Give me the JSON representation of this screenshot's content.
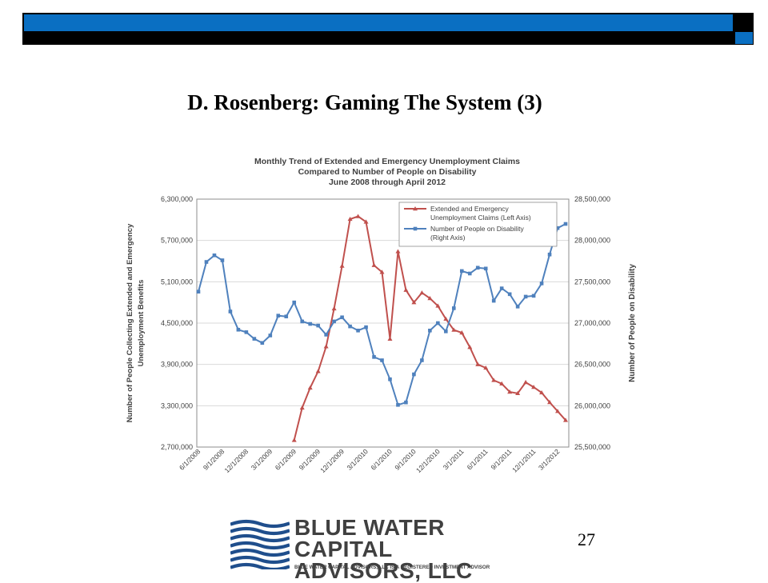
{
  "slide": {
    "title": "D. Rosenberg: Gaming The System (3)",
    "page_number": "27",
    "accent_color": "#0a6fc2",
    "bar_color": "#000000"
  },
  "logo": {
    "name_line1": "BLUE WATER CAPITAL",
    "name_line2": "ADVISORS, LLC",
    "tagline": "BLUE WATER CAPITAL ADVISORS, LLC IS A REGISTERED INVESTMENT ADVISOR",
    "icon": "blue-water-waves-logo",
    "color": "#1f4e8c"
  },
  "chart_data": {
    "type": "line",
    "title": [
      "Monthly Trend of Extended and Emergency Unemployment Claims",
      "Compared to  Number of People on Disability",
      "June 2008 through April 2012"
    ],
    "ylabel_left": [
      "Number of People Collecting Extended and Emergency",
      "Unemployment Benefits"
    ],
    "ylabel_right": "Number of People on Disability",
    "xlabel": "",
    "x": [
      "6/1/2008",
      "7/1/2008",
      "8/1/2008",
      "9/1/2008",
      "10/1/2008",
      "11/1/2008",
      "12/1/2008",
      "1/1/2009",
      "2/1/2009",
      "3/1/2009",
      "4/1/2009",
      "5/1/2009",
      "6/1/2009",
      "7/1/2009",
      "8/1/2009",
      "9/1/2009",
      "10/1/2009",
      "11/1/2009",
      "12/1/2009",
      "1/1/2010",
      "2/1/2010",
      "3/1/2010",
      "4/1/2010",
      "5/1/2010",
      "6/1/2010",
      "7/1/2010",
      "8/1/2010",
      "9/1/2010",
      "10/1/2010",
      "11/1/2010",
      "12/1/2010",
      "1/1/2011",
      "2/1/2011",
      "3/1/2011",
      "4/1/2011",
      "5/1/2011",
      "6/1/2011",
      "7/1/2011",
      "8/1/2011",
      "9/1/2011",
      "10/1/2011",
      "11/1/2011",
      "12/1/2011",
      "1/1/2012",
      "2/1/2012",
      "3/1/2012",
      "4/1/2012"
    ],
    "x_tick_labels": [
      "6/1/2008",
      "9/1/2008",
      "12/1/2008",
      "3/1/2009",
      "6/1/2009",
      "9/1/2009",
      "12/1/2009",
      "3/1/2010",
      "6/1/2010",
      "9/1/2010",
      "12/1/2010",
      "3/1/2011",
      "6/1/2011",
      "9/1/2011",
      "12/1/2011",
      "3/1/2012"
    ],
    "y_left_ticks": [
      "2,700,000",
      "3,300,000",
      "3,900,000",
      "4,500,000",
      "5,100,000",
      "5,700,000",
      "6,300,000"
    ],
    "y_right_ticks": [
      "25,500,000",
      "26,000,000",
      "26,500,000",
      "27,000,000",
      "27,500,000",
      "28,000,000",
      "28,500,000"
    ],
    "ylim_left": [
      2700000,
      6300000
    ],
    "ylim_right": [
      25500000,
      28500000
    ],
    "grid": "horizontal",
    "legend_position": "top-right",
    "series": [
      {
        "name": "Extended and Emergency Unemployment Claims (Left Axis)",
        "legend_lines": [
          "Extended and Emergency",
          "Unemployment Claims (Left Axis)"
        ],
        "axis": "left",
        "color": "#c0504d",
        "marker": "triangle",
        "values": [
          null,
          null,
          null,
          null,
          null,
          null,
          null,
          null,
          null,
          null,
          null,
          null,
          2800000,
          3270000,
          3560000,
          3800000,
          4160000,
          4710000,
          5330000,
          6010000,
          6050000,
          5970000,
          5340000,
          5240000,
          4270000,
          5540000,
          4980000,
          4800000,
          4940000,
          4860000,
          4750000,
          4560000,
          4400000,
          4360000,
          4150000,
          3900000,
          3850000,
          3670000,
          3620000,
          3500000,
          3480000,
          3640000,
          3570000,
          3490000,
          3350000,
          3220000,
          3090000
        ]
      },
      {
        "name": "Number of People on Disability (Right Axis)",
        "legend_lines": [
          "Number of People on Disability",
          "(Right Axis)"
        ],
        "axis": "right",
        "color": "#4f81bd",
        "marker": "square",
        "values": [
          27380000,
          27740000,
          27820000,
          27760000,
          27140000,
          26920000,
          26890000,
          26810000,
          26760000,
          26850000,
          27090000,
          27080000,
          27250000,
          27020000,
          26990000,
          26970000,
          26860000,
          27020000,
          27070000,
          26960000,
          26910000,
          26950000,
          26590000,
          26550000,
          26320000,
          26010000,
          26040000,
          26380000,
          26550000,
          26910000,
          27000000,
          26900000,
          27180000,
          27630000,
          27600000,
          27670000,
          27660000,
          27270000,
          27420000,
          27350000,
          27200000,
          27320000,
          27330000,
          27480000,
          27830000,
          28150000,
          28200000
        ]
      }
    ]
  }
}
